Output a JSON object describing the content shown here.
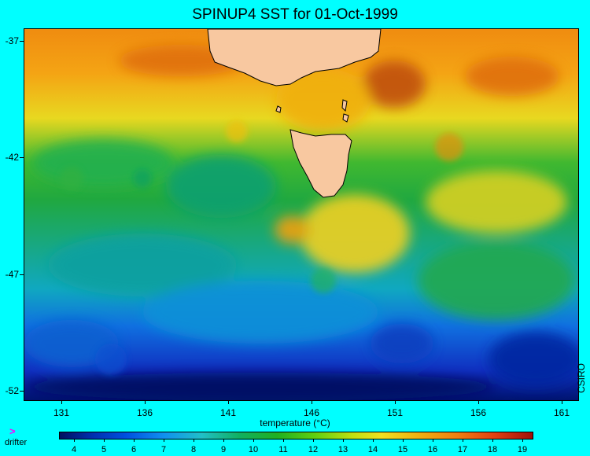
{
  "title": "SPINUP4 SST for 01-Oct-1999",
  "axes": {
    "lat_ticks": [
      "-37",
      "-42",
      "-47",
      "-52"
    ],
    "lon_ticks": [
      "131",
      "136",
      "141",
      "146",
      "151",
      "156",
      "161"
    ]
  },
  "credit": "CSIRO",
  "colorbar": {
    "title": "temperature (°C)",
    "labels": [
      "4",
      "5",
      "6",
      "7",
      "8",
      "9",
      "10",
      "11",
      "12",
      "13",
      "14",
      "15",
      "16",
      "17",
      "18",
      "19"
    ]
  },
  "legend": {
    "marker": ">",
    "label": "drifter",
    "marker_color": "#ff00ff"
  },
  "colors": {
    "background": "#00ffff",
    "land": "#f8c8a0",
    "coast": "#000000"
  }
}
